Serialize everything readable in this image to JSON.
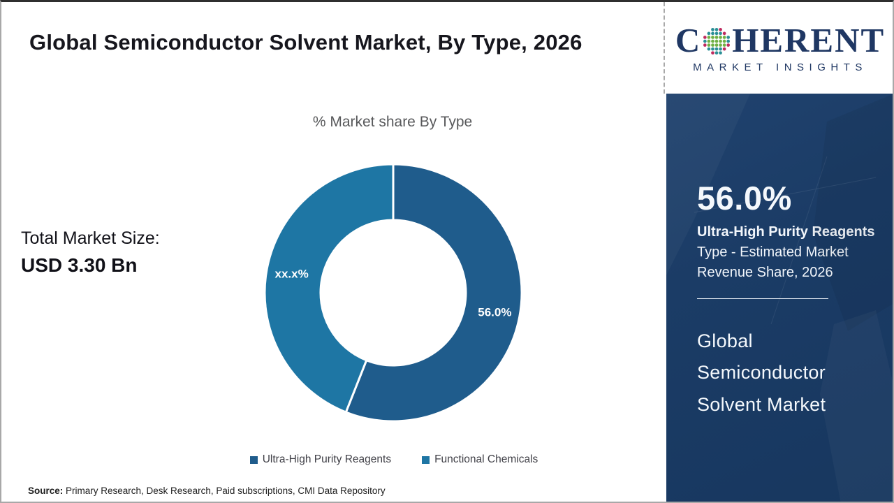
{
  "header": {
    "title": "Global Semiconductor Solvent Market, By Type, 2026"
  },
  "logo": {
    "word_start": "C",
    "word_end": "HERENT",
    "subtitle": "MARKET INSIGHTS",
    "navy": "#1f3763",
    "dot_teal": "#2a8f96",
    "dot_green": "#6fb043",
    "dot_crimson": "#bf2a5e"
  },
  "chart_data": {
    "type": "pie",
    "donut": true,
    "title": "% Market share By Type",
    "labels": [
      "Ultra-High Purity Reagents",
      "Functional Chemicals"
    ],
    "values": [
      56.0,
      44.0
    ],
    "value_labels": [
      "56.0%",
      "xx.x%"
    ],
    "colors": [
      "#1f5c8c",
      "#1e76a4"
    ],
    "start_angle_deg": 0,
    "direction": "clockwise",
    "legend_position": "bottom",
    "separator_color": "#ffffff"
  },
  "total": {
    "label": "Total Market Size:",
    "value": "USD 3.30 Bn"
  },
  "sidebar": {
    "stat_value": "56.0%",
    "stat_desc_bold": "Ultra-High Purity Reagents",
    "stat_desc_rest": " Type - Estimated Market Revenue Share, 2026",
    "title": "Global Semiconductor Solvent Market",
    "background": "#1b3c66"
  },
  "source": {
    "label": "Source:",
    "text": " Primary Research, Desk Research, Paid subscriptions, CMI Data Repository"
  }
}
